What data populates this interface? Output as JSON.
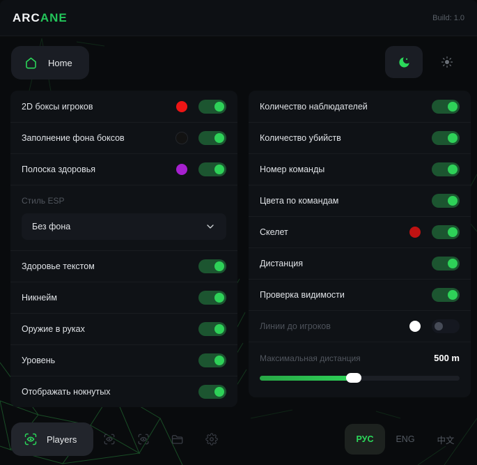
{
  "header": {
    "brand_primary": "ARC",
    "brand_accent": "ANE",
    "build": "Build: 1.0"
  },
  "nav": {
    "home": "Home"
  },
  "theme": {
    "icons": [
      "moon-icon",
      "sun-icon"
    ],
    "active": "dark"
  },
  "esp_left": {
    "color_rows": [
      {
        "label": "2D боксы игроков",
        "dot": "#ed1515",
        "toggle": true
      },
      {
        "label": "Заполнение фона боксов",
        "dot": "#121212",
        "toggle": true
      },
      {
        "label": "Полоска здоровья",
        "dot": "#a620cf",
        "toggle": true
      }
    ],
    "style_label": "Стиль ESP",
    "style_selected": "Без фона",
    "toggle_rows": [
      {
        "label": "Здоровье текстом",
        "toggle": true
      },
      {
        "label": "Никнейм",
        "toggle": true
      },
      {
        "label": "Оружие в руках",
        "toggle": true
      },
      {
        "label": "Уровень",
        "toggle": true
      },
      {
        "label": "Отображать нокнутых",
        "toggle": true
      }
    ]
  },
  "esp_right": {
    "rows": [
      {
        "label": "Количество наблюдателей",
        "toggle": true
      },
      {
        "label": "Количество убийств",
        "toggle": true
      },
      {
        "label": "Номер команды",
        "toggle": true
      },
      {
        "label": "Цвета по командам",
        "toggle": true
      },
      {
        "label": "Скелет",
        "dot": "#c01212",
        "toggle": true
      },
      {
        "label": "Дистанция",
        "toggle": true
      },
      {
        "label": "Проверка видимости",
        "toggle": true
      },
      {
        "label": "Линии до игроков",
        "dot": "#ffffff",
        "toggle": false,
        "dimmed": true
      }
    ],
    "distance": {
      "label": "Максимальная дистанция",
      "value": "500 m",
      "percent": 47
    }
  },
  "footer": {
    "players": "Players",
    "tool_icons": [
      "scan-eye-icon",
      "scan-eye-icon",
      "folder-icon",
      "gear-icon"
    ],
    "languages": [
      {
        "label": "РУС",
        "active": true
      },
      {
        "label": "ENG",
        "active": false
      },
      {
        "label": "中文",
        "active": false
      }
    ]
  },
  "colors": {
    "accent": "#2bd85a",
    "toggle_track_on": "#1c5530",
    "toggle_knob_on": "#2ed158",
    "swatch_red": "#ed1515",
    "swatch_dark": "#121212",
    "swatch_purple": "#a620cf",
    "swatch_dark_red": "#c01212",
    "swatch_white": "#ffffff"
  }
}
